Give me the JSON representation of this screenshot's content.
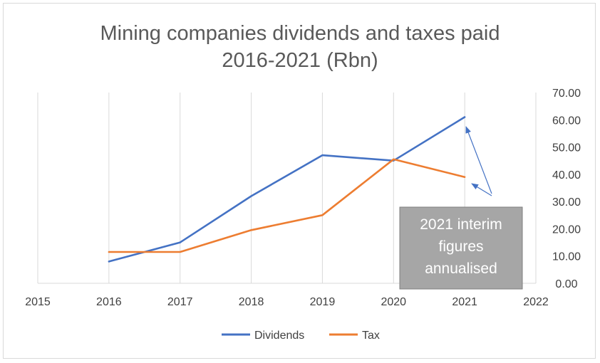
{
  "chart_data": {
    "type": "line",
    "title_line1": "Mining companies dividends and taxes paid",
    "title_line2": "2016-2021 (Rbn)",
    "x_ticks": [
      "2015",
      "2016",
      "2017",
      "2018",
      "2019",
      "2020",
      "2021",
      "2022"
    ],
    "xlim": [
      2015,
      2022
    ],
    "ylim": [
      0,
      70
    ],
    "y_ticks": [
      "0.00",
      "10.00",
      "20.00",
      "30.00",
      "40.00",
      "50.00",
      "60.00",
      "70.00"
    ],
    "y_axis_side": "right",
    "grid": "vertical",
    "legend_position": "bottom",
    "series": [
      {
        "name": "Dividends",
        "color": "#4472c4",
        "x": [
          2016,
          2017,
          2018,
          2019,
          2020,
          2021
        ],
        "values": [
          8,
          15,
          32,
          47,
          45,
          61
        ]
      },
      {
        "name": "Tax",
        "color": "#ed7d31",
        "x": [
          2016,
          2017,
          2018,
          2019,
          2020,
          2021
        ],
        "values": [
          11.5,
          11.5,
          19.5,
          25,
          45.5,
          39
        ]
      }
    ],
    "annotation": {
      "lines": [
        "2021 interim",
        "figures",
        "annualised"
      ],
      "box_color": "#a6a6a6",
      "arrow_color": "#4472c4"
    }
  }
}
